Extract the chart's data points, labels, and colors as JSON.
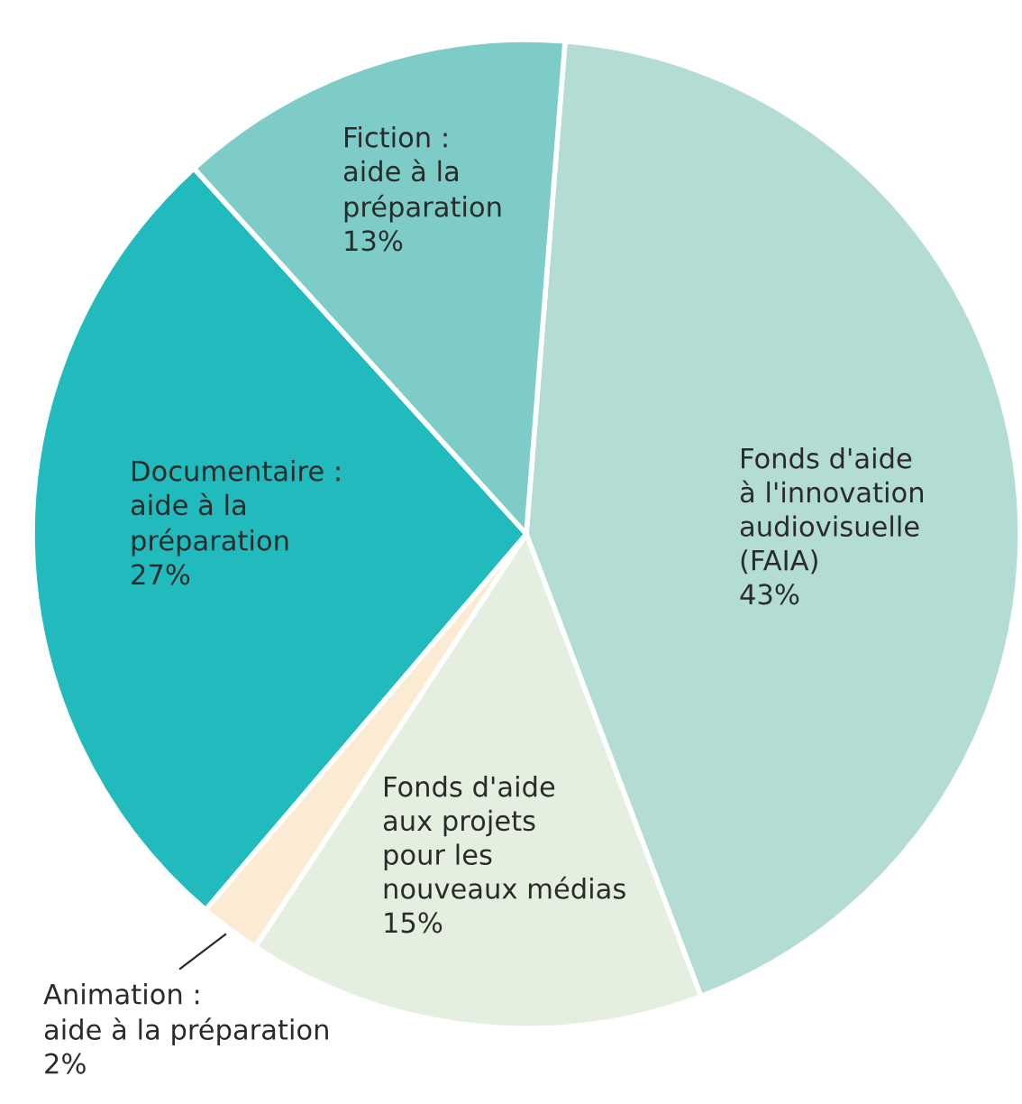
{
  "chart_data": {
    "type": "pie",
    "categories": [
      "Fonds d'aide\nà l'innovation\naudiovisuelle\n(FAIA)",
      "Fonds d'aide\naux projets\npour les\nnouveaux médias",
      "Animation :\naide à la préparation",
      "Documentaire :\naide à la\npréparation",
      "Fiction :\naide à la\npréparation"
    ],
    "values": [
      43,
      15,
      2,
      27,
      13
    ],
    "value_labels": [
      "43%",
      "15%",
      "2%",
      "27%",
      "13%"
    ],
    "colors": [
      "#b3ddd4",
      "#e5efdf",
      "#fbebd3",
      "#21bbbd",
      "#7dccc8"
    ]
  }
}
